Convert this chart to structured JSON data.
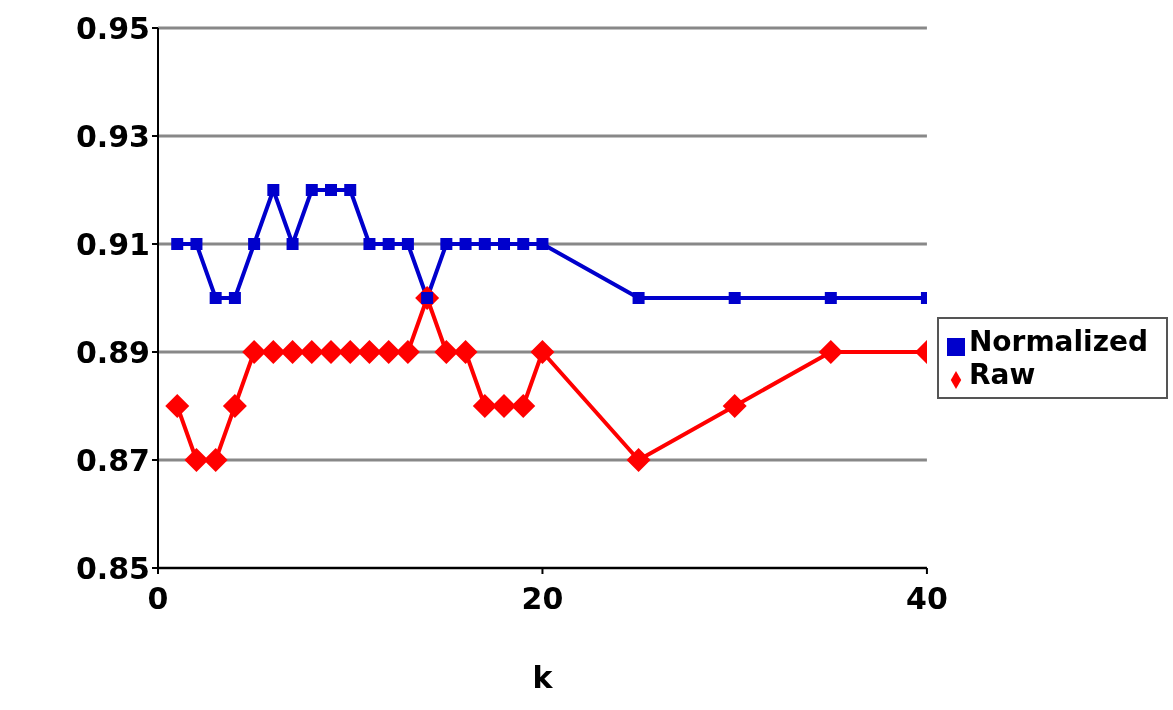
{
  "chart_data": {
    "type": "line",
    "xlabel": "k",
    "x": [
      1,
      2,
      3,
      4,
      5,
      6,
      7,
      8,
      9,
      10,
      11,
      12,
      13,
      14,
      15,
      16,
      17,
      18,
      19,
      20,
      25,
      30,
      35,
      40
    ],
    "series": [
      {
        "name": "Raw",
        "color": "#ff0000",
        "marker": "diamond",
        "values": [
          0.88,
          0.87,
          0.87,
          0.88,
          0.89,
          0.89,
          0.89,
          0.89,
          0.89,
          0.89,
          0.89,
          0.89,
          0.89,
          0.9,
          0.89,
          0.89,
          0.88,
          0.88,
          0.88,
          0.89,
          0.87,
          0.88,
          0.89,
          0.89
        ]
      },
      {
        "name": "Normalized",
        "color": "#0000cc",
        "marker": "square",
        "values": [
          0.91,
          0.91,
          0.9,
          0.9,
          0.91,
          0.92,
          0.91,
          0.92,
          0.92,
          0.92,
          0.91,
          0.91,
          0.91,
          0.9,
          0.91,
          0.91,
          0.91,
          0.91,
          0.91,
          0.91,
          0.9,
          0.9,
          0.9,
          0.9
        ]
      }
    ],
    "xlim": [
      0,
      40
    ],
    "xticks": [
      0,
      20,
      40
    ],
    "ylim": [
      0.85,
      0.95
    ],
    "yticks": [
      0.85,
      0.87,
      0.89,
      0.91,
      0.93,
      0.95
    ],
    "grid": "y",
    "legend": "right"
  }
}
